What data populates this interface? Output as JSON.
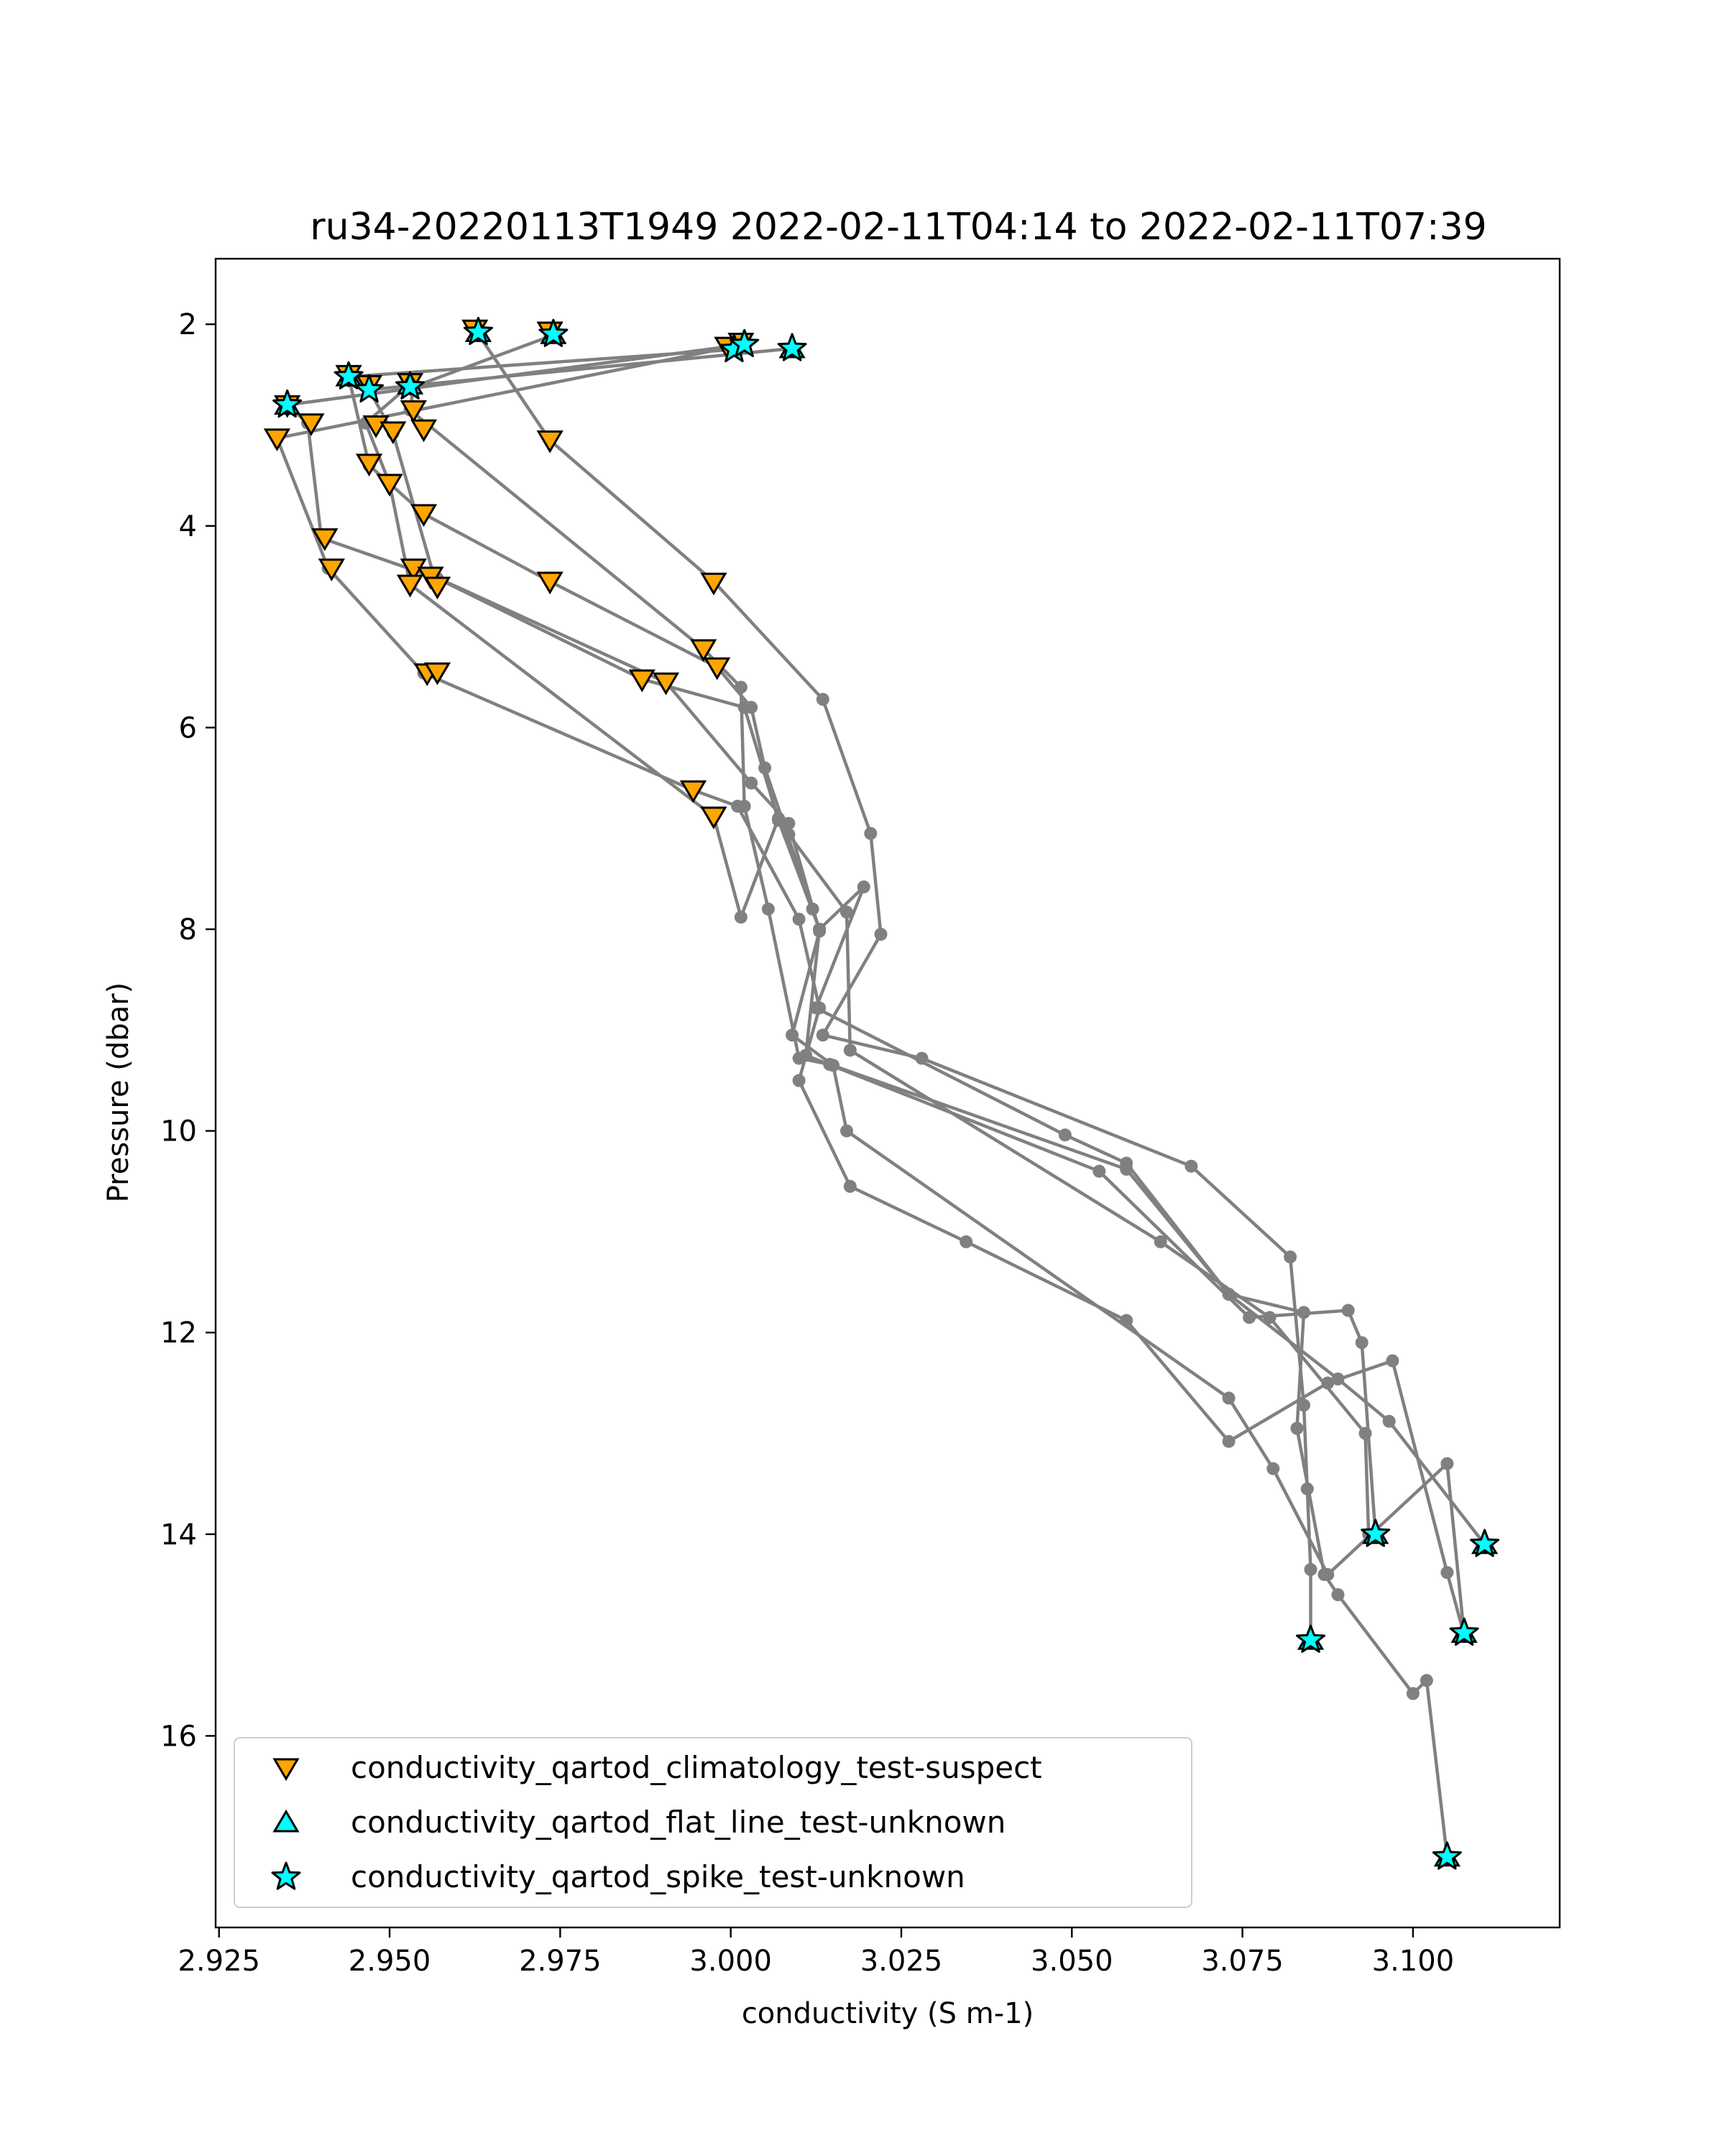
{
  "chart_data": {
    "type": "line",
    "title": "ru34-20220113T1949 2022-02-11T04:14 to 2022-02-11T07:39",
    "xlabel": "conductivity (S m-1)",
    "ylabel": "Pressure (dbar)",
    "xlim": [
      2.9245,
      3.1215
    ],
    "ylim": [
      17.9,
      1.35
    ],
    "y_inverted": true,
    "xticks": [
      "2.925",
      "2.950",
      "2.975",
      "3.000",
      "3.025",
      "3.050",
      "3.075",
      "3.100"
    ],
    "xtick_values": [
      2.925,
      2.95,
      2.975,
      3.0,
      3.025,
      3.05,
      3.075,
      3.1
    ],
    "yticks": [
      "2",
      "4",
      "6",
      "8",
      "10",
      "12",
      "14",
      "16"
    ],
    "ytick_values": [
      2,
      4,
      6,
      8,
      10,
      12,
      14,
      16
    ],
    "grid": false,
    "legend_position": "lower-left",
    "colors": {
      "line": "#808080",
      "suspect": "#FFA500",
      "flat_line": "#00FFFF",
      "spike": "#00FFFF",
      "marker_edge": "#000000"
    },
    "profiles": [
      {
        "x": [
          2.963,
          2.9735,
          2.9975,
          3.0135,
          3.0205,
          3.022,
          3.0135,
          3.028,
          3.0675,
          3.082,
          3.084,
          3.0845,
          3.085,
          3.085
        ],
        "y": [
          2.1,
          3.15,
          4.55,
          5.72,
          7.05,
          8.05,
          9.05,
          9.28,
          10.35,
          11.25,
          12.72,
          13.55,
          14.35,
          15.05
        ]
      },
      {
        "x": [
          2.9735,
          2.9535,
          2.953,
          2.996,
          3.0015,
          3.002,
          3.0055,
          3.01,
          3.0145,
          3.058,
          3.073,
          3.084,
          3.083,
          3.087,
          3.089,
          3.1,
          3.102,
          3.105
        ],
        "y": [
          2.12,
          2.62,
          2.85,
          5.22,
          5.6,
          6.78,
          7.8,
          9.28,
          9.34,
          10.38,
          11.62,
          11.8,
          12.95,
          14.4,
          14.6,
          15.58,
          15.45,
          17.2
        ]
      },
      {
        "x": [
          3.0005,
          2.944,
          2.947,
          2.955,
          2.9735,
          2.998,
          3.003,
          3.005,
          3.012,
          3.013,
          3.011,
          3.054,
          3.076,
          3.0905,
          3.0925,
          3.0945
        ],
        "y": [
          2.25,
          2.52,
          3.4,
          3.88,
          4.55,
          5.4,
          5.8,
          6.4,
          7.8,
          8.0,
          9.25,
          10.4,
          11.85,
          11.78,
          12.1,
          14.0
        ]
      },
      {
        "x": [
          3.002,
          2.935,
          2.938,
          2.94,
          2.957,
          2.987,
          3.002,
          3.007,
          3.013,
          3.0195,
          3.0125,
          3.049,
          3.058,
          3.073,
          3.089,
          3.0965,
          3.1105
        ],
        "y": [
          2.2,
          2.8,
          2.98,
          4.12,
          4.52,
          5.52,
          5.8,
          6.92,
          8.0,
          7.58,
          8.78,
          10.04,
          10.32,
          11.62,
          12.46,
          12.88,
          14.1
        ]
      },
      {
        "x": [
          3.009,
          2.947,
          2.9505,
          2.9565,
          2.9905,
          3.003,
          3.0085,
          3.013,
          3.009,
          3.015,
          3.017,
          3.073,
          3.0795,
          3.0875,
          3.105,
          3.1075
        ],
        "y": [
          2.24,
          2.65,
          3.08,
          4.5,
          5.55,
          6.55,
          6.95,
          8.02,
          9.05,
          9.35,
          10.0,
          12.65,
          13.35,
          14.4,
          13.3,
          15.0
        ]
      },
      {
        "x": [
          3.0005,
          2.9335,
          2.941,
          2.955,
          2.9945,
          3.001,
          3.01,
          3.013,
          3.01,
          3.0175,
          3.0345,
          3.058,
          3.073,
          3.0875,
          3.097,
          3.105,
          3.1075
        ],
        "y": [
          2.22,
          3.13,
          4.42,
          5.46,
          6.62,
          6.78,
          7.9,
          8.78,
          9.5,
          10.55,
          11.1,
          11.88,
          13.08,
          12.5,
          12.28,
          14.38,
          15.0
        ]
      },
      {
        "x": [
          2.953,
          2.9465,
          2.95,
          2.953,
          2.9975,
          3.0015,
          3.007,
          3.0085,
          3.017,
          3.0175,
          3.063,
          3.079,
          3.093,
          3.0935
        ],
        "y": [
          2.6,
          2.98,
          3.58,
          4.58,
          6.88,
          7.88,
          6.9,
          7.06,
          7.83,
          9.2,
          11.1,
          11.85,
          13.0,
          14.0
        ]
      }
    ],
    "suspect_points": [
      [
        2.9625,
        2.05
      ],
      [
        2.9735,
        2.07
      ],
      [
        2.9995,
        2.22
      ],
      [
        3.0015,
        2.18
      ],
      [
        2.944,
        2.5
      ],
      [
        2.947,
        2.6
      ],
      [
        2.953,
        2.58
      ],
      [
        2.935,
        2.8
      ],
      [
        2.9535,
        2.85
      ],
      [
        2.9385,
        2.98
      ],
      [
        2.948,
        3.0
      ],
      [
        2.9505,
        3.06
      ],
      [
        2.955,
        3.04
      ],
      [
        2.9335,
        3.13
      ],
      [
        2.9735,
        3.15
      ],
      [
        2.947,
        3.38
      ],
      [
        2.95,
        3.58
      ],
      [
        2.955,
        3.88
      ],
      [
        2.9405,
        4.12
      ],
      [
        2.9415,
        4.42
      ],
      [
        2.9535,
        4.42
      ],
      [
        2.956,
        4.5
      ],
      [
        2.953,
        4.58
      ],
      [
        2.957,
        4.6
      ],
      [
        2.9735,
        4.55
      ],
      [
        2.9975,
        4.56
      ],
      [
        2.996,
        5.22
      ],
      [
        2.998,
        5.4
      ],
      [
        2.9555,
        5.46
      ],
      [
        2.957,
        5.45
      ],
      [
        2.987,
        5.52
      ],
      [
        2.9905,
        5.55
      ],
      [
        2.9945,
        6.62
      ],
      [
        2.9975,
        6.88
      ]
    ],
    "flat_line_points": [
      [
        2.963,
        2.08
      ],
      [
        2.974,
        2.1
      ],
      [
        2.944,
        2.52
      ],
      [
        2.953,
        2.6
      ],
      [
        2.935,
        2.8
      ],
      [
        3.009,
        2.24
      ],
      [
        3.0945,
        14.0
      ],
      [
        3.1105,
        14.1
      ],
      [
        3.085,
        15.05
      ],
      [
        3.1075,
        14.98
      ],
      [
        3.105,
        17.2
      ]
    ],
    "spike_points": [
      [
        2.963,
        2.08
      ],
      [
        2.974,
        2.1
      ],
      [
        3.0005,
        2.25
      ],
      [
        3.002,
        2.2
      ],
      [
        3.009,
        2.24
      ],
      [
        2.944,
        2.52
      ],
      [
        2.947,
        2.65
      ],
      [
        2.953,
        2.62
      ],
      [
        2.935,
        2.8
      ],
      [
        3.0945,
        14.0
      ],
      [
        3.1105,
        14.1
      ],
      [
        3.085,
        15.05
      ],
      [
        3.1075,
        14.98
      ],
      [
        3.105,
        17.2
      ]
    ],
    "legend": [
      {
        "label": "conductivity_qartod_climatology_test-suspect",
        "marker": "triangle-down",
        "color": "#FFA500"
      },
      {
        "label": "conductivity_qartod_flat_line_test-unknown",
        "marker": "triangle-up",
        "color": "#00FFFF"
      },
      {
        "label": "conductivity_qartod_spike_test-unknown",
        "marker": "star",
        "color": "#00FFFF"
      }
    ]
  }
}
